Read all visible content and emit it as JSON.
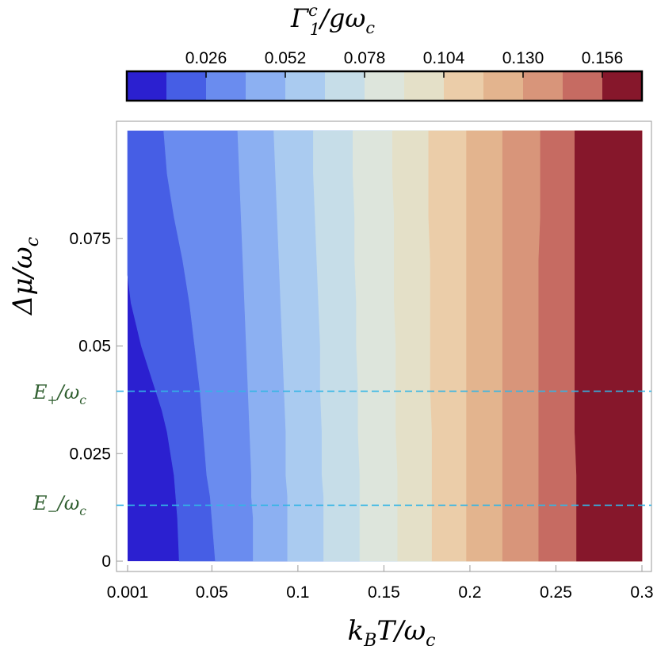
{
  "chart_data": {
    "type": "contour",
    "title": "",
    "xlabel": "k_B T / ω_c",
    "ylabel": "Δμ / ω_c",
    "xlim": [
      0.001,
      0.3
    ],
    "ylim": [
      0,
      0.1
    ],
    "x_ticks": [
      0.001,
      0.05,
      0.1,
      0.15,
      0.2,
      0.25,
      0.3
    ],
    "x_tick_labels": [
      "0.001",
      "0.05",
      "0.1",
      "0.15",
      "0.2",
      "0.25",
      "0.3"
    ],
    "y_ticks": [
      0,
      0.025,
      0.05,
      0.075
    ],
    "y_tick_labels": [
      "0",
      "0.025",
      "0.05",
      "0.075"
    ],
    "colorbar": {
      "title": "Γ₁ᶜ / gω_c",
      "levels": [
        0.013,
        0.026,
        0.039,
        0.052,
        0.065,
        0.078,
        0.091,
        0.104,
        0.117,
        0.13,
        0.143,
        0.156
      ],
      "tick_values": [
        0.026,
        0.052,
        0.078,
        0.104,
        0.13,
        0.156
      ],
      "tick_labels": [
        "0.026",
        "0.052",
        "0.078",
        "0.104",
        "0.130",
        "0.156"
      ],
      "colors": [
        "#2b20d0",
        "#465ee5",
        "#6a8cef",
        "#8cb0f2",
        "#aacbf0",
        "#c6dde8",
        "#dde5dc",
        "#e4e0c8",
        "#ebcda9",
        "#e3b48e",
        "#d8957a",
        "#c66b62",
        "#86172b"
      ]
    },
    "contour_boundaries_x": [
      [
        0.001,
        0.001,
        0.003,
        0.006,
        0.009,
        0.013,
        0.017,
        0.021,
        0.024,
        0.026,
        0.028,
        0.03,
        0.031
      ],
      [
        0.022,
        0.024,
        0.028,
        0.033,
        0.037,
        0.04,
        0.043,
        0.045,
        0.047,
        0.049,
        0.05,
        0.051,
        0.052
      ],
      [
        0.065,
        0.066,
        0.067,
        0.068,
        0.069,
        0.07,
        0.071,
        0.072,
        0.073,
        0.073,
        0.074,
        0.074,
        0.074
      ],
      [
        0.086,
        0.087,
        0.088,
        0.089,
        0.09,
        0.091,
        0.092,
        0.093,
        0.093,
        0.094,
        0.094,
        0.094,
        0.094
      ],
      [
        0.109,
        0.109,
        0.11,
        0.111,
        0.112,
        0.113,
        0.113,
        0.114,
        0.114,
        0.115,
        0.115,
        0.115,
        0.115
      ],
      [
        0.132,
        0.132,
        0.133,
        0.133,
        0.134,
        0.134,
        0.135,
        0.135,
        0.136,
        0.136,
        0.136,
        0.136,
        0.136
      ],
      [
        0.155,
        0.155,
        0.156,
        0.156,
        0.156,
        0.157,
        0.157,
        0.157,
        0.158,
        0.158,
        0.158,
        0.158,
        0.158
      ],
      [
        0.176,
        0.176,
        0.176,
        0.177,
        0.177,
        0.177,
        0.177,
        0.178,
        0.178,
        0.178,
        0.178,
        0.178,
        0.178
      ],
      [
        0.198,
        0.198,
        0.198,
        0.198,
        0.198,
        0.198,
        0.198,
        0.198,
        0.198,
        0.198,
        0.198,
        0.198,
        0.198
      ],
      [
        0.219,
        0.219,
        0.219,
        0.219,
        0.219,
        0.219,
        0.219,
        0.219,
        0.219,
        0.219,
        0.219,
        0.219,
        0.219
      ],
      [
        0.241,
        0.241,
        0.241,
        0.24,
        0.24,
        0.24,
        0.24,
        0.24,
        0.24,
        0.24,
        0.24,
        0.24,
        0.24
      ],
      [
        0.261,
        0.261,
        0.261,
        0.261,
        0.261,
        0.261,
        0.261,
        0.261,
        0.262,
        0.262,
        0.262,
        0.262,
        0.262
      ]
    ],
    "contour_boundaries_y": [
      0.069,
      0.0665,
      0.06,
      0.055,
      0.05,
      0.045,
      0.04,
      0.035,
      0.03,
      0.025,
      0.02,
      0.01,
      0.0
    ],
    "contour_outer_y": [
      0.1,
      0.09,
      0.08,
      0.07,
      0.06,
      0.05,
      0.04,
      0.03,
      0.02,
      0.015,
      0.01,
      0.005,
      0.0
    ],
    "reference_lines": [
      {
        "label": "E+/ω_c",
        "y": 0.0395,
        "color": "#33b5e5",
        "style": "dashed"
      },
      {
        "label": "E−/ω_c",
        "y": 0.013,
        "color": "#33b5e5",
        "style": "dashed"
      }
    ]
  }
}
